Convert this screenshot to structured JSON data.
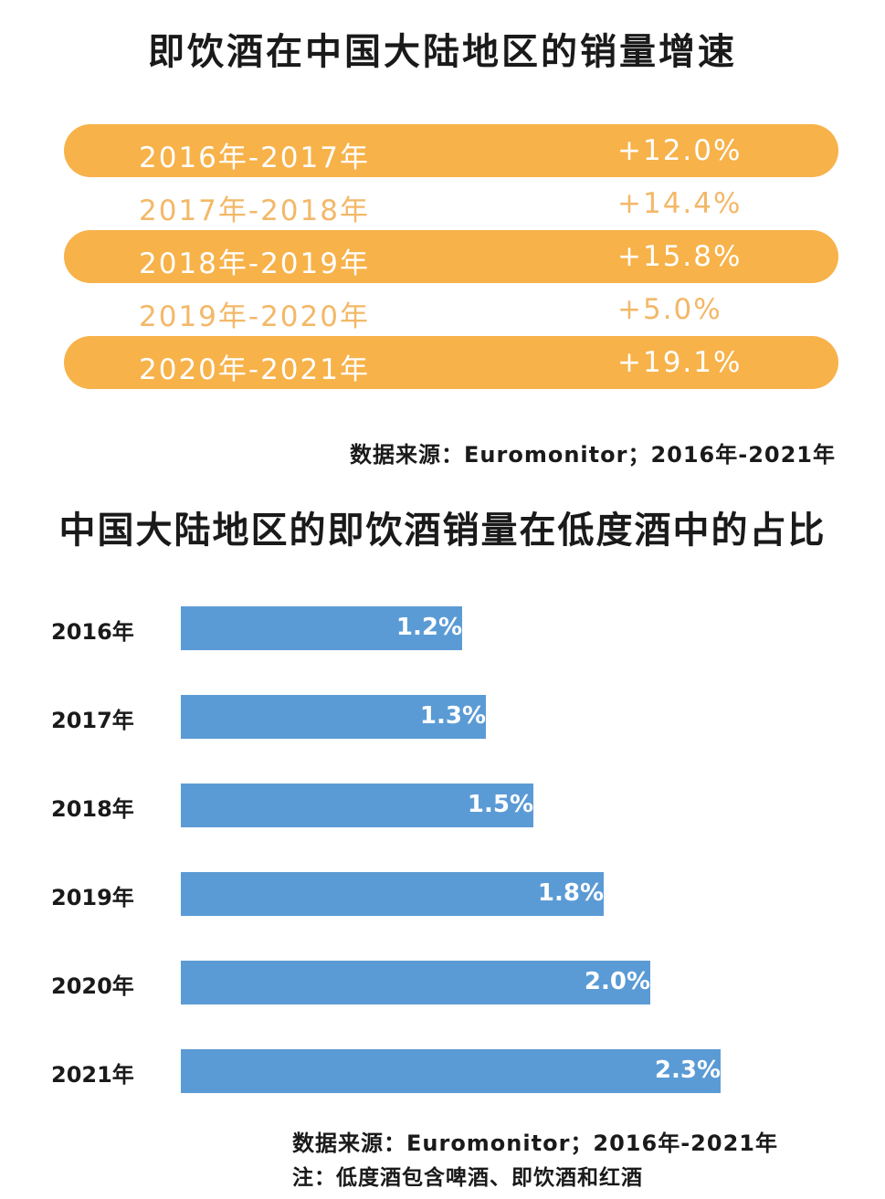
{
  "growth": {
    "title": "即饮酒在中国大陆地区的销量增速",
    "rows": [
      {
        "period": "2016年-2017年",
        "rate": "+12.0%"
      },
      {
        "period": "2017年-2018年",
        "rate": "+14.4%"
      },
      {
        "period": "2018年-2019年",
        "rate": "+15.8%"
      },
      {
        "period": "2019年-2020年",
        "rate": "+5.0%"
      },
      {
        "period": "2020年-2021年",
        "rate": "+19.1%"
      }
    ],
    "source": "数据来源：Euromonitor；2016年-2021年"
  },
  "share": {
    "title": "中国大陆地区的即饮酒销量在低度酒中的占比",
    "source": "数据来源：Euromonitor；2016年-2021年",
    "note": "注：低度酒包含啤酒、即饮酒和红酒"
  },
  "colors": {
    "orange_band": "#f7b24a",
    "orange_text": "#f3b868",
    "bar_blue": "#5b9bd5"
  },
  "chart_data": [
    {
      "type": "table",
      "title": "即饮酒在中国大陆地区的销量增速",
      "categories": [
        "2016年-2017年",
        "2017年-2018年",
        "2018年-2019年",
        "2019年-2020年",
        "2020年-2021年"
      ],
      "values": [
        12.0,
        14.4,
        15.8,
        5.0,
        19.1
      ],
      "labels": [
        "+12.0%",
        "+14.4%",
        "+15.8%",
        "+5.0%",
        "+19.1%"
      ]
    },
    {
      "type": "bar",
      "orientation": "horizontal",
      "title": "中国大陆地区的即饮酒销量在低度酒中的占比",
      "categories": [
        "2016年",
        "2017年",
        "2018年",
        "2019年",
        "2020年",
        "2021年"
      ],
      "values": [
        1.2,
        1.3,
        1.5,
        1.8,
        2.0,
        2.3
      ],
      "labels": [
        "1.2%",
        "1.3%",
        "1.5%",
        "1.8%",
        "2.0%",
        "2.3%"
      ],
      "grid": false
    }
  ]
}
